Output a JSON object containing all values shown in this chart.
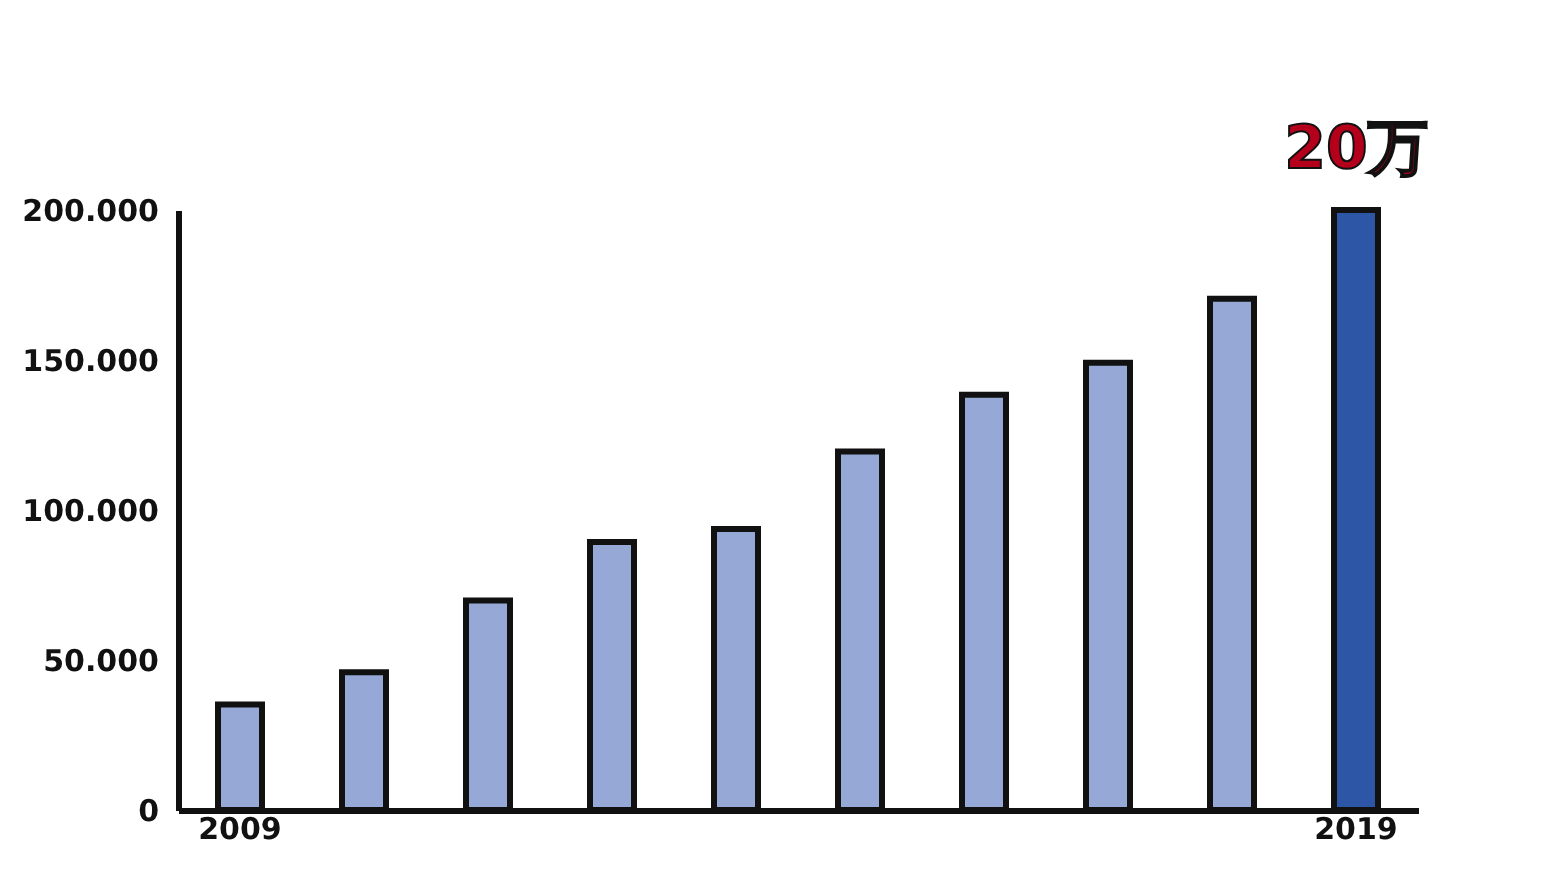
{
  "chart_data": {
    "type": "bar",
    "categories": [
      "2009",
      null,
      null,
      null,
      null,
      null,
      null,
      null,
      null,
      "2019"
    ],
    "values": [
      35200,
      45900,
      69800,
      89300,
      93700,
      119500,
      138400,
      149100,
      170400,
      200000
    ],
    "colors": [
      "#95a8d6",
      "#95a8d6",
      "#95a8d6",
      "#95a8d6",
      "#95a8d6",
      "#95a8d6",
      "#95a8d6",
      "#95a8d6",
      "#95a8d6",
      "#2e56a6"
    ],
    "ylim": [
      0,
      200000
    ],
    "yticks": [
      {
        "value": 0,
        "label": "0"
      },
      {
        "value": 50000,
        "label": "50.000"
      },
      {
        "value": 100000,
        "label": "100.000"
      },
      {
        "value": 150000,
        "label": "150.000"
      },
      {
        "value": 200000,
        "label": "200.000"
      }
    ],
    "annotations": [
      {
        "text": "20万",
        "x": "2019",
        "y": 200000
      }
    ],
    "grid": false
  }
}
